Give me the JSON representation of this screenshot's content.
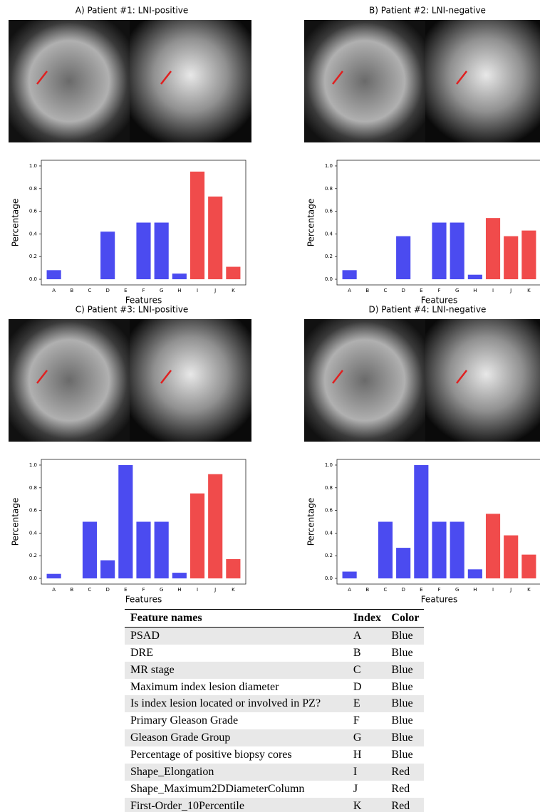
{
  "chart_data": [
    {
      "type": "bar",
      "title": "A) Patient #1: LNI-positive",
      "ylabel": "Percentage",
      "xlabel": "Features",
      "categories": [
        "A",
        "B",
        "C",
        "D",
        "E",
        "F",
        "G",
        "H",
        "I",
        "J",
        "K"
      ],
      "values": [
        0.08,
        0,
        0,
        0.42,
        0,
        0.5,
        0.5,
        0.05,
        0.95,
        0.73,
        0.11
      ],
      "colors": [
        "#4b4bf0",
        "#4b4bf0",
        "#4b4bf0",
        "#4b4bf0",
        "#4b4bf0",
        "#4b4bf0",
        "#4b4bf0",
        "#4b4bf0",
        "#f04b4b",
        "#f04b4b",
        "#f04b4b"
      ],
      "ylim": [
        -0.05,
        1.05
      ],
      "yticks": [
        {
          "value": 0,
          "label": "0.0"
        },
        0.2,
        0.4,
        0.6,
        0.8,
        {
          "value": 1,
          "label": "1.0"
        }
      ]
    },
    {
      "type": "bar",
      "title": "B) Patient #2: LNI-negative",
      "ylabel": "Percentage",
      "xlabel": "Features",
      "categories": [
        "A",
        "B",
        "C",
        "D",
        "E",
        "F",
        "G",
        "H",
        "I",
        "J",
        "K"
      ],
      "values": [
        0.08,
        0,
        0,
        0.38,
        0,
        0.5,
        0.5,
        0.04,
        0.54,
        0.38,
        0.43
      ],
      "colors": [
        "#4b4bf0",
        "#4b4bf0",
        "#4b4bf0",
        "#4b4bf0",
        "#4b4bf0",
        "#4b4bf0",
        "#4b4bf0",
        "#4b4bf0",
        "#f04b4b",
        "#f04b4b",
        "#f04b4b"
      ],
      "ylim": [
        -0.05,
        1.05
      ],
      "yticks": [
        {
          "value": 0,
          "label": "0.0"
        },
        0.2,
        0.4,
        0.6,
        0.8,
        {
          "value": 1,
          "label": "1.0"
        }
      ]
    },
    {
      "type": "bar",
      "title": "C) Patient #3: LNI-positive",
      "ylabel": "Percentage",
      "xlabel": "Features",
      "categories": [
        "A",
        "B",
        "C",
        "D",
        "E",
        "F",
        "G",
        "H",
        "I",
        "J",
        "K"
      ],
      "values": [
        0.04,
        0,
        0.5,
        0.16,
        1.0,
        0.5,
        0.5,
        0.05,
        0.75,
        0.92,
        0.17
      ],
      "colors": [
        "#4b4bf0",
        "#4b4bf0",
        "#4b4bf0",
        "#4b4bf0",
        "#4b4bf0",
        "#4b4bf0",
        "#4b4bf0",
        "#4b4bf0",
        "#f04b4b",
        "#f04b4b",
        "#f04b4b"
      ],
      "ylim": [
        -0.05,
        1.05
      ],
      "yticks": [
        {
          "value": 0,
          "label": "0.0"
        },
        0.2,
        0.4,
        0.6,
        0.8,
        {
          "value": 1,
          "label": "1.0"
        }
      ]
    },
    {
      "type": "bar",
      "title": "D) Patient #4: LNI-negative",
      "ylabel": "Percentage",
      "xlabel": "Features",
      "categories": [
        "A",
        "B",
        "C",
        "D",
        "E",
        "F",
        "G",
        "H",
        "I",
        "J",
        "K"
      ],
      "values": [
        0.06,
        0,
        0.5,
        0.27,
        1.0,
        0.5,
        0.5,
        0.08,
        0.57,
        0.38,
        0.21
      ],
      "colors": [
        "#4b4bf0",
        "#4b4bf0",
        "#4b4bf0",
        "#4b4bf0",
        "#4b4bf0",
        "#4b4bf0",
        "#4b4bf0",
        "#4b4bf0",
        "#f04b4b",
        "#f04b4b",
        "#f04b4b"
      ],
      "ylim": [
        -0.05,
        1.05
      ],
      "yticks": [
        {
          "value": 0,
          "label": "0.0"
        },
        0.2,
        0.4,
        0.6,
        0.8,
        {
          "value": 1,
          "label": "1.0"
        }
      ]
    }
  ],
  "table": {
    "header": [
      "Feature names",
      "Index",
      "Color"
    ],
    "rows": [
      [
        "PSAD",
        "A",
        "Blue"
      ],
      [
        "DRE",
        "B",
        "Blue"
      ],
      [
        "MR stage",
        "C",
        "Blue"
      ],
      [
        "Maximum index lesion diameter",
        "D",
        "Blue"
      ],
      [
        "Is index lesion located or involved in PZ?",
        "E",
        "Blue"
      ],
      [
        "Primary Gleason Grade",
        "F",
        "Blue"
      ],
      [
        "Gleason Grade Group",
        "G",
        "Blue"
      ],
      [
        "Percentage of positive biopsy cores",
        "H",
        "Blue"
      ],
      [
        "Shape_Elongation",
        "I",
        "Red"
      ],
      [
        "Shape_Maximum2DDiameterColumn",
        "J",
        "Red"
      ],
      [
        "First-Order_10Percentile",
        "K",
        "Red"
      ]
    ]
  }
}
